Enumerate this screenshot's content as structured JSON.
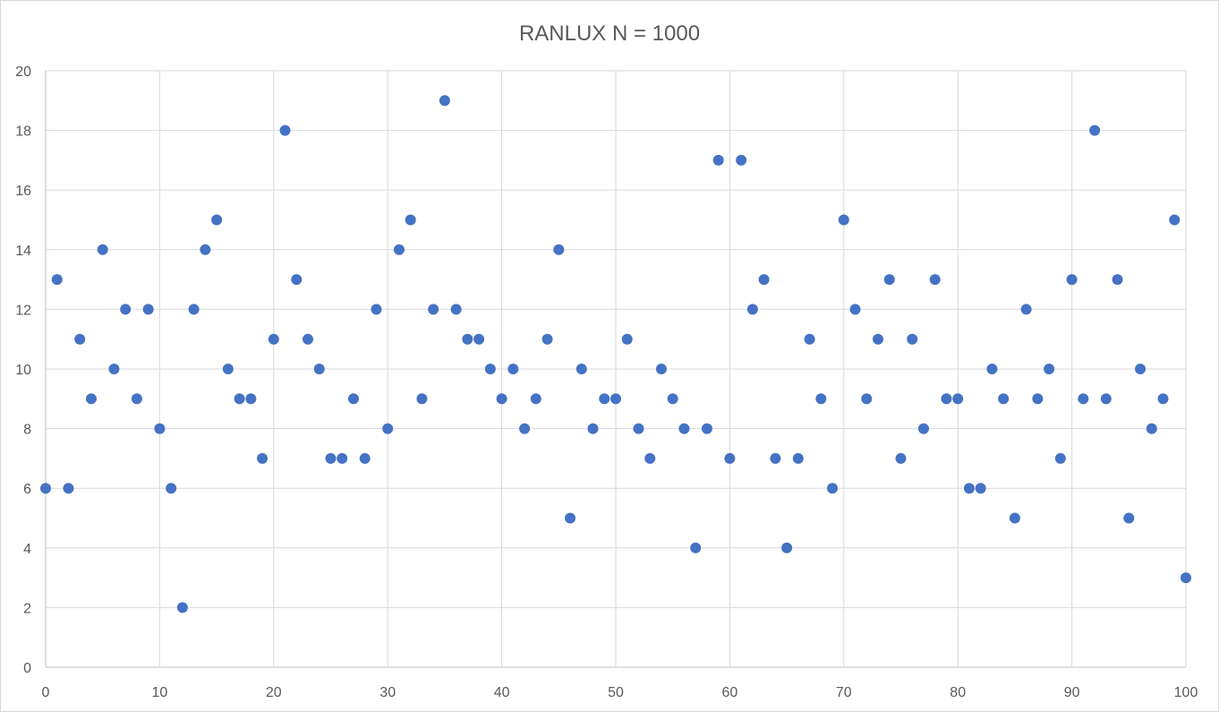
{
  "chart_data": {
    "type": "scatter",
    "title": "RANLUX N = 1000",
    "xlabel": "",
    "ylabel": "",
    "xlim": [
      0,
      100
    ],
    "ylim": [
      0,
      20
    ],
    "x_ticks": [
      0,
      10,
      20,
      30,
      40,
      50,
      60,
      70,
      80,
      90,
      100
    ],
    "y_ticks": [
      0,
      2,
      4,
      6,
      8,
      10,
      12,
      14,
      16,
      18,
      20
    ],
    "grid": true,
    "legend": "none",
    "series": [
      {
        "color": "#4472c4",
        "x": [
          0,
          1,
          2,
          3,
          4,
          5,
          6,
          7,
          8,
          9,
          10,
          11,
          12,
          13,
          14,
          15,
          16,
          17,
          18,
          19,
          20,
          21,
          22,
          23,
          24,
          25,
          26,
          27,
          28,
          29,
          30,
          31,
          32,
          33,
          34,
          35,
          36,
          37,
          38,
          39,
          40,
          41,
          42,
          43,
          44,
          45,
          46,
          47,
          48,
          49,
          50,
          51,
          52,
          53,
          54,
          55,
          56,
          57,
          58,
          59,
          60,
          61,
          62,
          63,
          64,
          65,
          66,
          67,
          68,
          69,
          70,
          71,
          72,
          73,
          74,
          75,
          76,
          77,
          78,
          79,
          80,
          81,
          82,
          83,
          84,
          85,
          86,
          87,
          88,
          89,
          90,
          91,
          92,
          93,
          94,
          95,
          96,
          97,
          98,
          99,
          100
        ],
        "y": [
          6,
          13,
          6,
          11,
          9,
          14,
          10,
          12,
          9,
          12,
          8,
          6,
          2,
          12,
          14,
          15,
          10,
          9,
          9,
          7,
          11,
          18,
          13,
          11,
          10,
          7,
          7,
          9,
          7,
          12,
          8,
          14,
          15,
          9,
          12,
          19,
          12,
          11,
          11,
          10,
          9,
          10,
          8,
          9,
          11,
          14,
          5,
          10,
          8,
          9,
          9,
          11,
          8,
          7,
          10,
          9,
          8,
          4,
          8,
          17,
          7,
          17,
          12,
          13,
          7,
          4,
          7,
          11,
          9,
          6,
          15,
          12,
          9,
          11,
          13,
          7,
          11,
          8,
          13,
          9,
          9,
          6,
          6,
          10,
          9,
          5,
          12,
          9,
          10,
          7,
          13,
          9,
          18,
          9,
          13,
          5,
          10,
          8,
          9,
          15,
          3
        ]
      }
    ]
  }
}
